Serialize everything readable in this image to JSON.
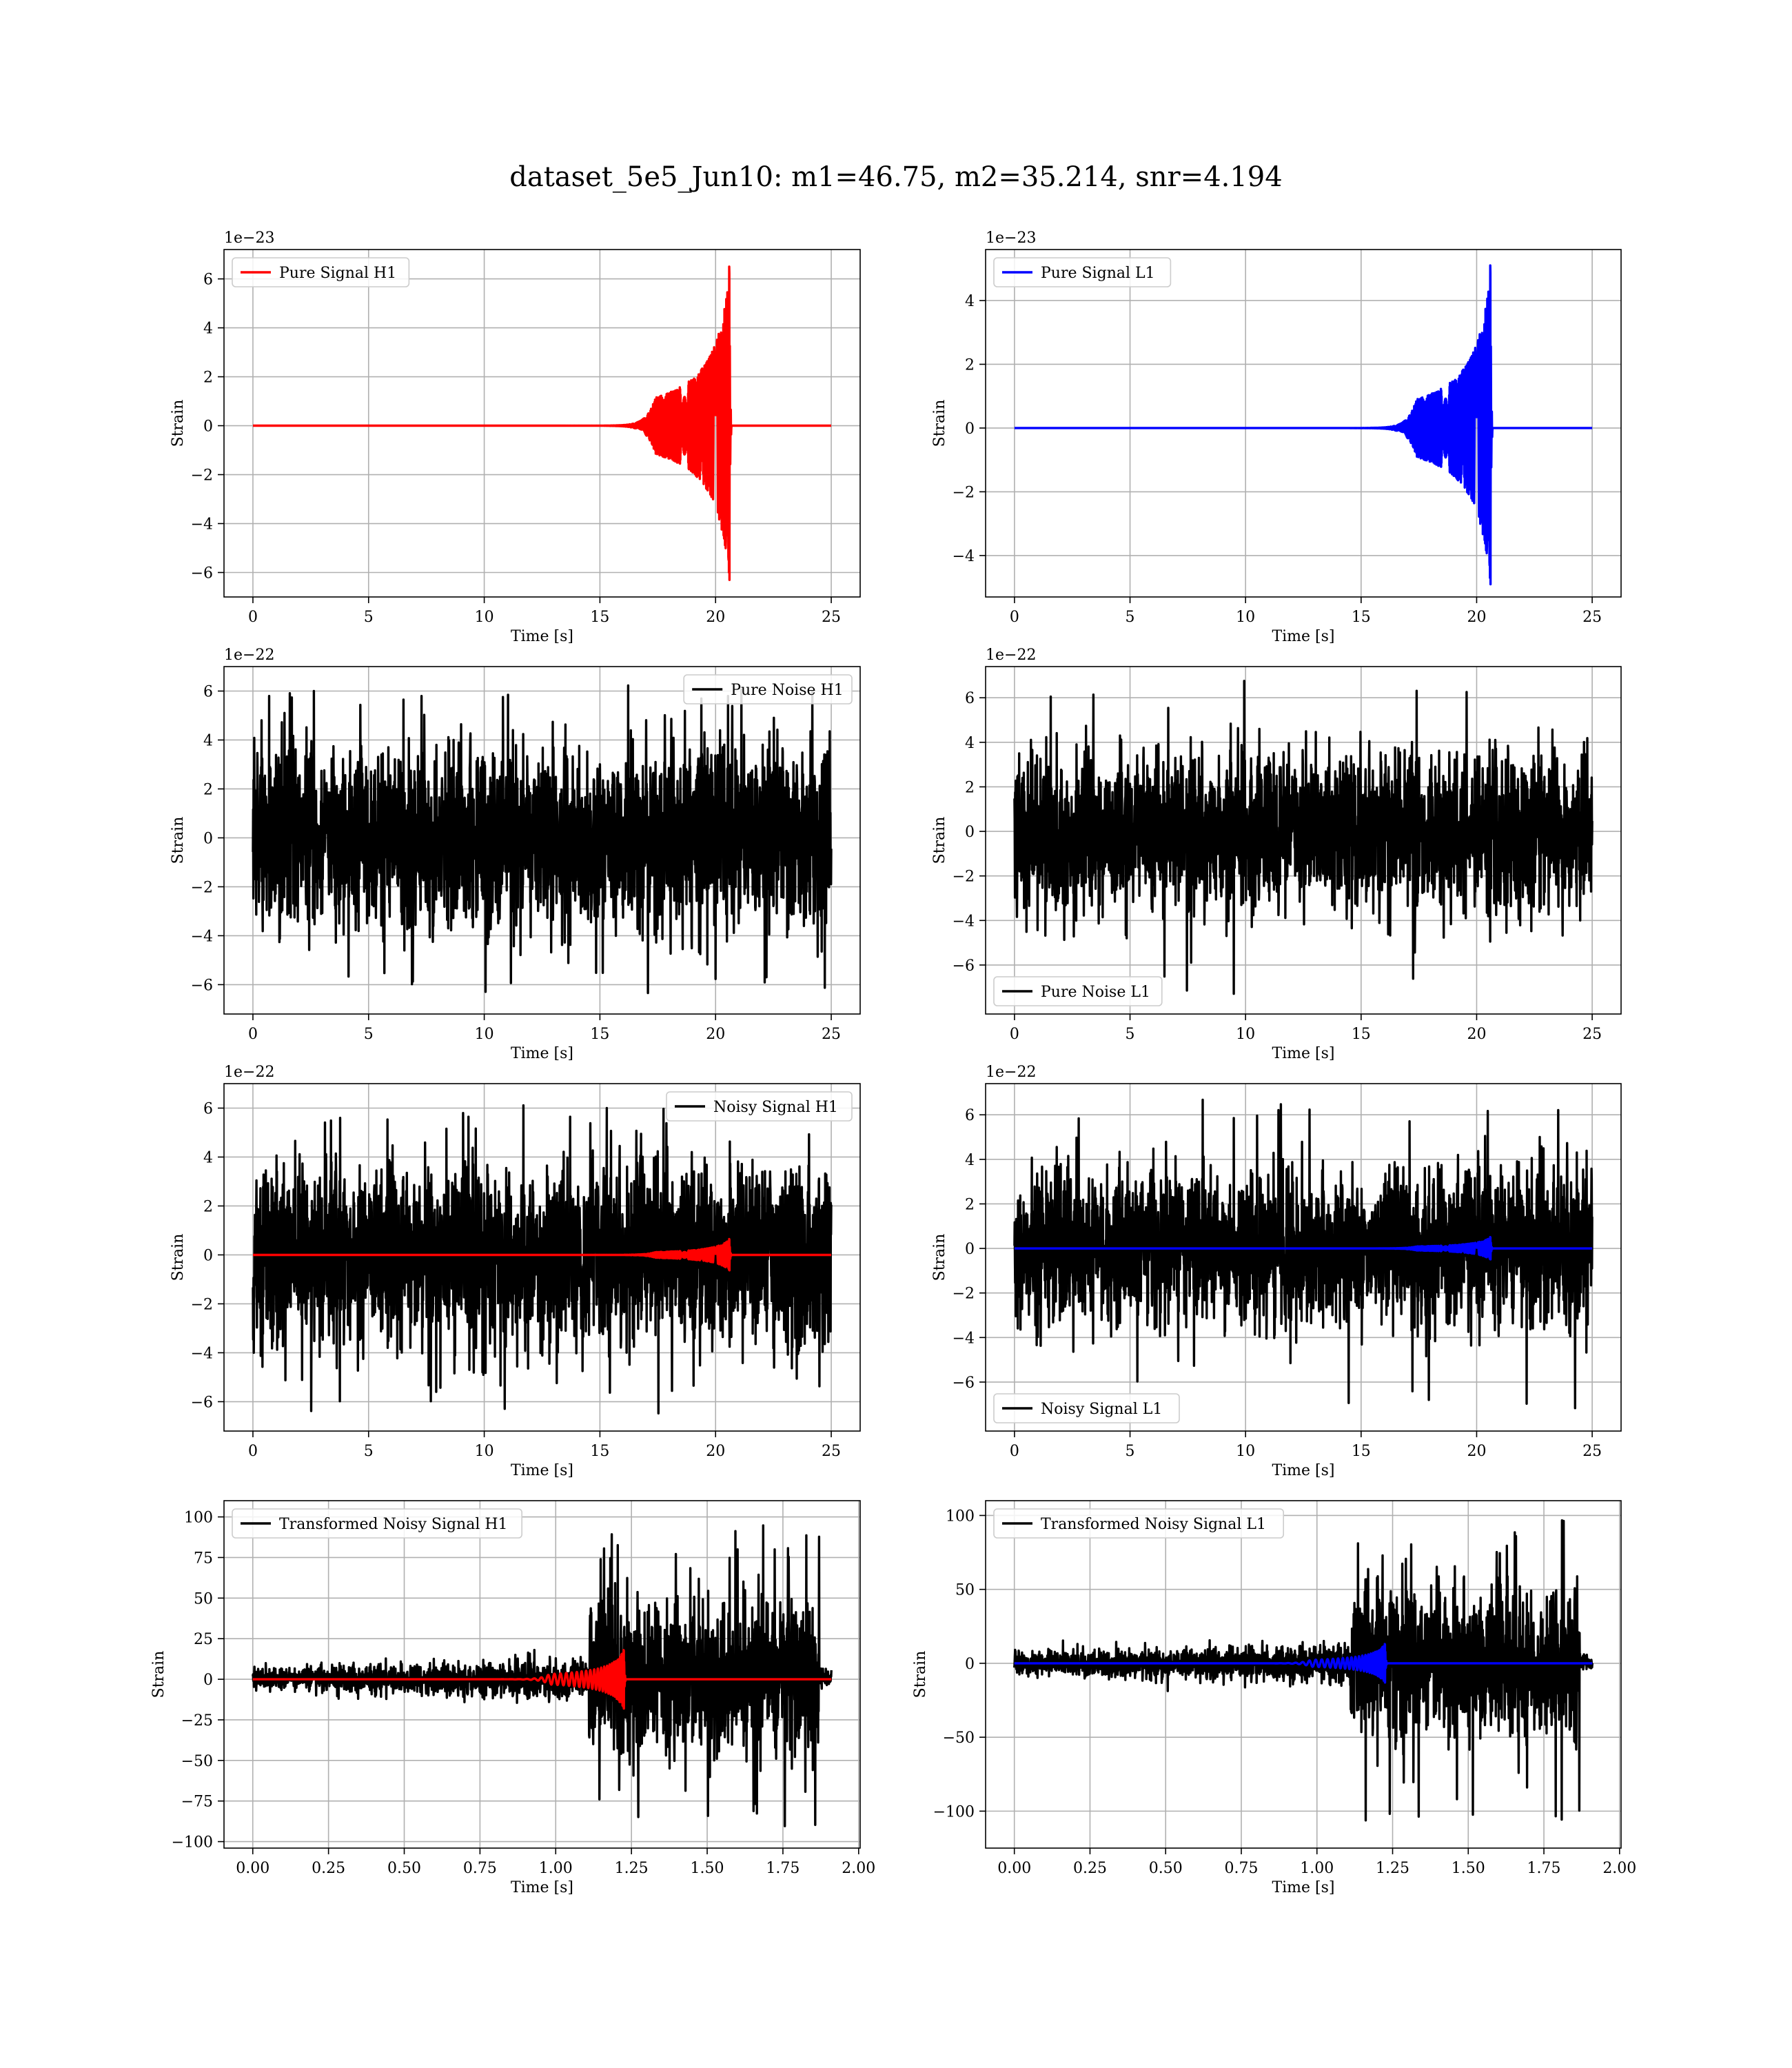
{
  "figure": {
    "suptitle": "dataset_5e5_Jun10: m1=46.75, m2=35.214, snr=4.194"
  },
  "chart_data": [
    {
      "type": "line",
      "legend": [
        "Pure Signal H1"
      ],
      "legend_loc": "upper-left",
      "xlabel": "Time [s]",
      "ylabel": "Strain",
      "offset_text": "1e−23",
      "xlim": [
        -1.25,
        26.25
      ],
      "ylim": [
        -7.0,
        7.2
      ],
      "xticks": [
        0,
        5,
        10,
        15,
        20,
        25
      ],
      "xtick_labels": [
        "0",
        "5",
        "10",
        "15",
        "20",
        "25"
      ],
      "yticks": [
        -6,
        -4,
        -2,
        0,
        2,
        4,
        6
      ],
      "ytick_labels": [
        "−6",
        "−4",
        "−2",
        "0",
        "2",
        "4",
        "6"
      ],
      "grid": true,
      "series": [
        {
          "name": "Pure Signal H1",
          "color": "#ff0000",
          "kind": "chirp",
          "x_range": [
            0,
            25
          ],
          "merger_time": 20.6,
          "amplitude_peak": 6.5,
          "amplitude_min": -6.3,
          "amplitude_at_19s": 1.0,
          "amplitude_at_20s": 2.2
        }
      ]
    },
    {
      "type": "line",
      "legend": [
        "Pure Signal L1"
      ],
      "legend_loc": "upper-left",
      "xlabel": "Time [s]",
      "ylabel": "Strain",
      "offset_text": "1e−23",
      "xlim": [
        -1.25,
        26.25
      ],
      "ylim": [
        -5.3,
        5.6
      ],
      "xticks": [
        0,
        5,
        10,
        15,
        20,
        25
      ],
      "xtick_labels": [
        "0",
        "5",
        "10",
        "15",
        "20",
        "25"
      ],
      "yticks": [
        -4,
        -2,
        0,
        2,
        4
      ],
      "ytick_labels": [
        "−4",
        "−2",
        "0",
        "2",
        "4"
      ],
      "grid": true,
      "series": [
        {
          "name": "Pure Signal L1",
          "color": "#0000ff",
          "kind": "chirp",
          "x_range": [
            0,
            25
          ],
          "merger_time": 20.6,
          "amplitude_peak": 5.1,
          "amplitude_min": -4.9,
          "amplitude_at_19s": 0.8,
          "amplitude_at_20s": 1.7
        }
      ]
    },
    {
      "type": "line",
      "legend": [
        "Pure Noise H1"
      ],
      "legend_loc": "upper-right",
      "xlabel": "Time [s]",
      "ylabel": "Strain",
      "offset_text": "1e−22",
      "xlim": [
        -1.25,
        26.25
      ],
      "ylim": [
        -7.2,
        7.0
      ],
      "xticks": [
        0,
        5,
        10,
        15,
        20,
        25
      ],
      "xtick_labels": [
        "0",
        "5",
        "10",
        "15",
        "20",
        "25"
      ],
      "yticks": [
        -6,
        -4,
        -2,
        0,
        2,
        4,
        6
      ],
      "ytick_labels": [
        "−6",
        "−4",
        "−2",
        "0",
        "2",
        "4",
        "6"
      ],
      "grid": true,
      "series": [
        {
          "name": "Pure Noise H1",
          "color": "#000000",
          "kind": "noise",
          "x_range": [
            0,
            25
          ],
          "envelope_upper": 4.0,
          "envelope_lower": -4.0,
          "max": 6.3,
          "min": -6.5
        }
      ]
    },
    {
      "type": "line",
      "legend": [
        "Pure Noise L1"
      ],
      "legend_loc": "lower-left",
      "xlabel": "Time [s]",
      "ylabel": "Strain",
      "offset_text": "1e−22",
      "xlim": [
        -1.25,
        26.25
      ],
      "ylim": [
        -8.2,
        7.4
      ],
      "xticks": [
        0,
        5,
        10,
        15,
        20,
        25
      ],
      "xtick_labels": [
        "0",
        "5",
        "10",
        "15",
        "20",
        "25"
      ],
      "yticks": [
        -6,
        -4,
        -2,
        0,
        2,
        4,
        6
      ],
      "ytick_labels": [
        "−6",
        "−4",
        "−2",
        "0",
        "2",
        "4",
        "6"
      ],
      "grid": true,
      "series": [
        {
          "name": "Pure Noise L1",
          "color": "#000000",
          "kind": "noise",
          "x_range": [
            0,
            25
          ],
          "envelope_upper": 3.8,
          "envelope_lower": -3.8,
          "max": 6.8,
          "min": -7.3
        }
      ]
    },
    {
      "type": "line",
      "legend": [
        "Noisy Signal H1"
      ],
      "legend_loc": "upper-right",
      "xlabel": "Time [s]",
      "ylabel": "Strain",
      "offset_text": "1e−22",
      "xlim": [
        -1.25,
        26.25
      ],
      "ylim": [
        -7.2,
        7.0
      ],
      "xticks": [
        0,
        5,
        10,
        15,
        20,
        25
      ],
      "xtick_labels": [
        "0",
        "5",
        "10",
        "15",
        "20",
        "25"
      ],
      "yticks": [
        -6,
        -4,
        -2,
        0,
        2,
        4,
        6
      ],
      "ytick_labels": [
        "−6",
        "−4",
        "−2",
        "0",
        "2",
        "4",
        "6"
      ],
      "grid": true,
      "series": [
        {
          "name": "Noisy Signal H1",
          "color": "#000000",
          "kind": "noise",
          "x_range": [
            0,
            25
          ],
          "envelope_upper": 4.0,
          "envelope_lower": -4.0,
          "max": 6.3,
          "min": -6.5
        },
        {
          "name": "",
          "color": "#ff0000",
          "kind": "chirp",
          "x_range": [
            0,
            25
          ],
          "merger_time": 20.6,
          "amplitude_peak": 0.65,
          "amplitude_min": -0.63,
          "amplitude_at_19s": 0.1,
          "amplitude_at_20s": 0.22
        }
      ]
    },
    {
      "type": "line",
      "legend": [
        "Noisy Signal L1"
      ],
      "legend_loc": "lower-left",
      "xlabel": "Time [s]",
      "ylabel": "Strain",
      "offset_text": "1e−22",
      "xlim": [
        -1.25,
        26.25
      ],
      "ylim": [
        -8.2,
        7.4
      ],
      "xticks": [
        0,
        5,
        10,
        15,
        20,
        25
      ],
      "xtick_labels": [
        "0",
        "5",
        "10",
        "15",
        "20",
        "25"
      ],
      "yticks": [
        -6,
        -4,
        -2,
        0,
        2,
        4,
        6
      ],
      "ytick_labels": [
        "−6",
        "−4",
        "−2",
        "0",
        "2",
        "4",
        "6"
      ],
      "grid": true,
      "series": [
        {
          "name": "Noisy Signal L1",
          "color": "#000000",
          "kind": "noise",
          "x_range": [
            0,
            25
          ],
          "envelope_upper": 3.8,
          "envelope_lower": -3.8,
          "max": 6.8,
          "min": -7.3
        },
        {
          "name": "",
          "color": "#0000ff",
          "kind": "chirp",
          "x_range": [
            0,
            25
          ],
          "merger_time": 20.6,
          "amplitude_peak": 0.51,
          "amplitude_min": -0.49,
          "amplitude_at_19s": 0.08,
          "amplitude_at_20s": 0.17
        }
      ]
    },
    {
      "type": "line",
      "legend": [
        "Transformed Noisy Signal H1"
      ],
      "legend_loc": "upper-left",
      "xlabel": "Time [s]",
      "ylabel": "Strain",
      "offset_text": "",
      "xlim": [
        -0.095,
        2.005
      ],
      "ylim": [
        -104,
        110
      ],
      "xticks": [
        0.0,
        0.25,
        0.5,
        0.75,
        1.0,
        1.25,
        1.5,
        1.75,
        2.0
      ],
      "xtick_labels": [
        "0.00",
        "0.25",
        "0.50",
        "0.75",
        "1.00",
        "1.25",
        "1.50",
        "1.75",
        "2.00"
      ],
      "yticks": [
        -100,
        -75,
        -50,
        -25,
        0,
        25,
        50,
        75,
        100
      ],
      "ytick_labels": [
        "−100",
        "−75",
        "−50",
        "−25",
        "0",
        "25",
        "50",
        "75",
        "100"
      ],
      "grid": true,
      "series": [
        {
          "name": "Transformed Noisy Signal H1",
          "color": "#000000",
          "kind": "whitened",
          "x_range": [
            0,
            1.91
          ],
          "envelope_early": 7,
          "envelope_late": 14,
          "transition_time": 1.11,
          "envelope_after": 50,
          "end_time": 1.87,
          "max": 100,
          "min": -93
        },
        {
          "name": "",
          "color": "#ff0000",
          "kind": "chirp",
          "x_range": [
            0,
            1.91
          ],
          "merger_time": 1.225,
          "amplitude_peak": 18,
          "amplitude_min": -18,
          "amplitude_at_19s": 1,
          "amplitude_at_20s": 4
        }
      ]
    },
    {
      "type": "line",
      "legend": [
        "Transformed Noisy Signal L1"
      ],
      "legend_loc": "upper-left",
      "xlabel": "Time [s]",
      "ylabel": "Strain",
      "offset_text": "",
      "xlim": [
        -0.095,
        2.005
      ],
      "ylim": [
        -125,
        110
      ],
      "xticks": [
        0.0,
        0.25,
        0.5,
        0.75,
        1.0,
        1.25,
        1.5,
        1.75,
        2.0
      ],
      "xtick_labels": [
        "0.00",
        "0.25",
        "0.50",
        "0.75",
        "1.00",
        "1.25",
        "1.50",
        "1.75",
        "2.00"
      ],
      "yticks": [
        -100,
        -50,
        0,
        50,
        100
      ],
      "ytick_labels": [
        "−100",
        "−50",
        "0",
        "50",
        "100"
      ],
      "grid": true,
      "series": [
        {
          "name": "Transformed Noisy Signal L1",
          "color": "#000000",
          "kind": "whitened",
          "x_range": [
            0,
            1.91
          ],
          "envelope_early": 8,
          "envelope_late": 15,
          "transition_time": 1.11,
          "envelope_after": 55,
          "end_time": 1.87,
          "max": 99,
          "min": -112
        },
        {
          "name": "",
          "color": "#0000ff",
          "kind": "chirp",
          "x_range": [
            0,
            1.91
          ],
          "merger_time": 1.225,
          "amplitude_peak": 13,
          "amplitude_min": -13,
          "amplitude_at_19s": 1,
          "amplitude_at_20s": 3
        }
      ]
    }
  ]
}
